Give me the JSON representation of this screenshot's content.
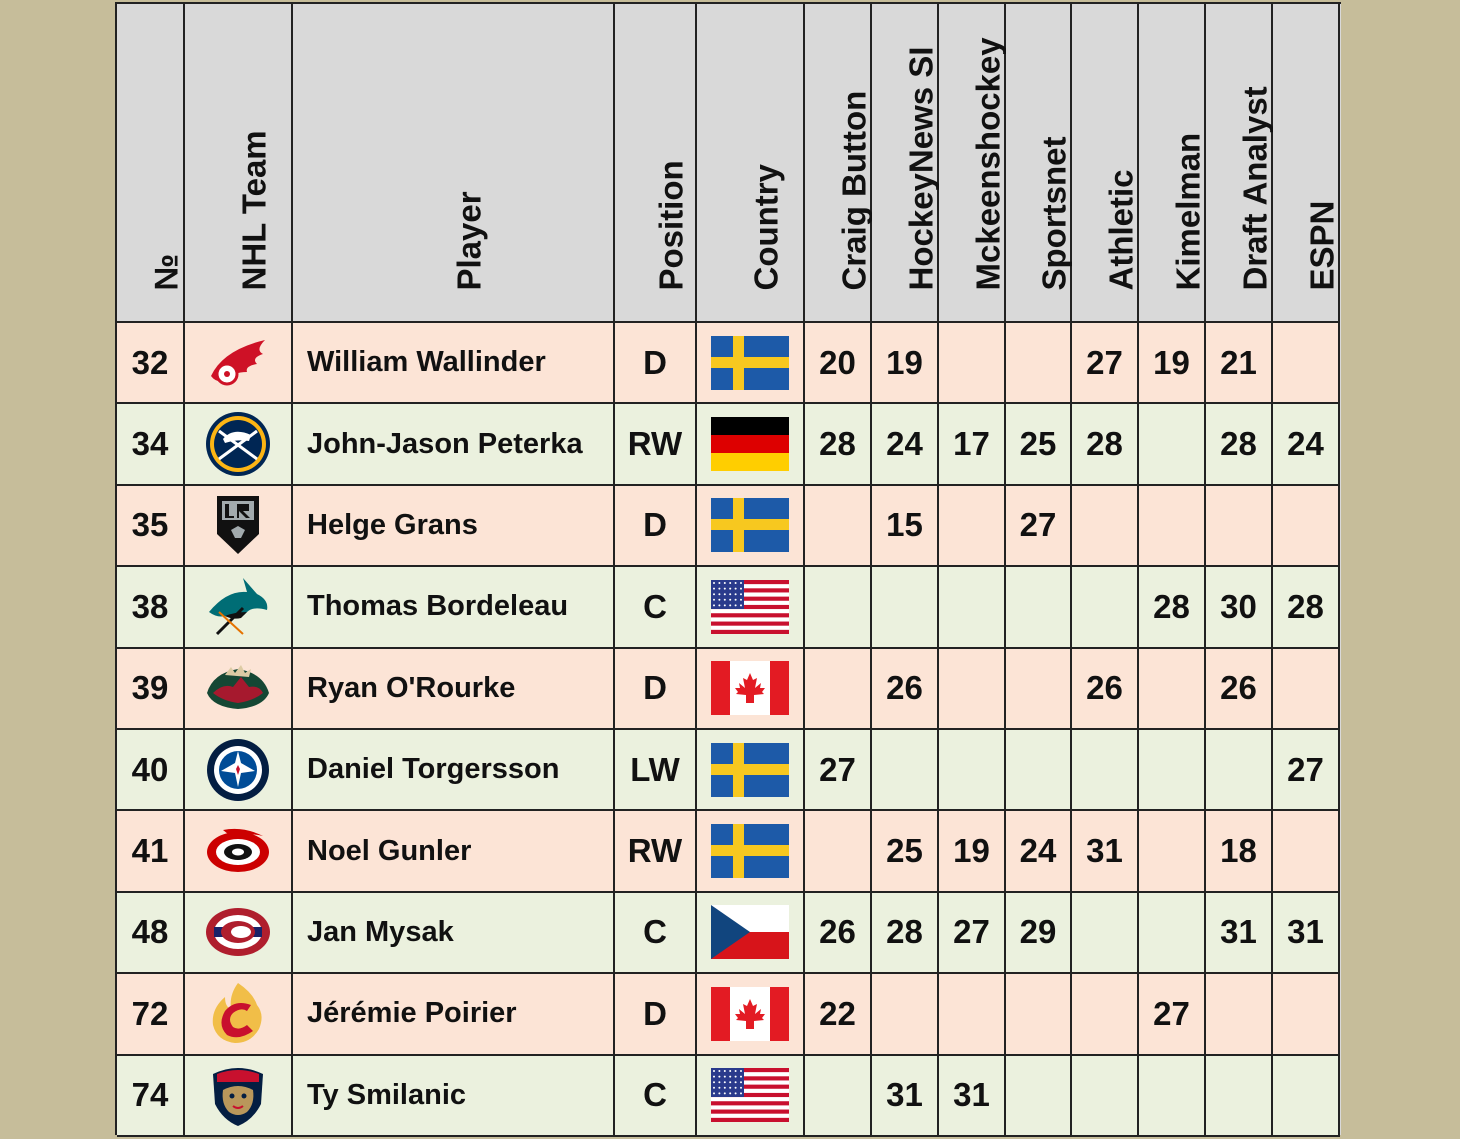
{
  "headers": [
    "№",
    "NHL Team",
    "Player",
    "Position",
    "Country",
    "Craig Button",
    "HockeyNews SI",
    "Mckeenshockey",
    "Sportsnet",
    "Athletic",
    "Kimelman",
    "Draft Analyst",
    "ESPN"
  ],
  "rows": [
    {
      "num": "32",
      "team_icon": "red-wings-logo-icon",
      "player": "William Wallinder",
      "position": "D",
      "country_icon": "sweden-flag-icon",
      "ranks": [
        "20",
        "19",
        "",
        "",
        "27",
        "19",
        "21",
        ""
      ]
    },
    {
      "num": "34",
      "team_icon": "sabres-logo-icon",
      "player": "John-Jason Peterka",
      "position": "RW",
      "country_icon": "germany-flag-icon",
      "ranks": [
        "28",
        "24",
        "17",
        "25",
        "28",
        "",
        "28",
        "24"
      ]
    },
    {
      "num": "35",
      "team_icon": "kings-logo-icon",
      "player": "Helge Grans",
      "position": "D",
      "country_icon": "sweden-flag-icon",
      "ranks": [
        "",
        "15",
        "",
        "27",
        "",
        "",
        "",
        ""
      ]
    },
    {
      "num": "38",
      "team_icon": "sharks-logo-icon",
      "player": "Thomas Bordeleau",
      "position": "C",
      "country_icon": "usa-flag-icon",
      "ranks": [
        "",
        "",
        "",
        "",
        "",
        "28",
        "30",
        "28"
      ]
    },
    {
      "num": "39",
      "team_icon": "wild-logo-icon",
      "player": "Ryan O'Rourke",
      "position": "D",
      "country_icon": "canada-flag-icon",
      "ranks": [
        "",
        "26",
        "",
        "",
        "26",
        "",
        "26",
        ""
      ]
    },
    {
      "num": "40",
      "team_icon": "jets-logo-icon",
      "player": "Daniel Torgersson",
      "position": "LW",
      "country_icon": "sweden-flag-icon",
      "ranks": [
        "27",
        "",
        "",
        "",
        "",
        "",
        "",
        "27"
      ]
    },
    {
      "num": "41",
      "team_icon": "hurricanes-logo-icon",
      "player": "Noel Gunler",
      "position": "RW",
      "country_icon": "sweden-flag-icon",
      "ranks": [
        "",
        "25",
        "19",
        "24",
        "31",
        "",
        "18",
        ""
      ]
    },
    {
      "num": "48",
      "team_icon": "canadiens-logo-icon",
      "player": "Jan Mysak",
      "position": "C",
      "country_icon": "czech-flag-icon",
      "ranks": [
        "26",
        "28",
        "27",
        "29",
        "",
        "",
        "31",
        "31"
      ]
    },
    {
      "num": "72",
      "team_icon": "flames-logo-icon",
      "player": "Jérémie Poirier",
      "position": "D",
      "country_icon": "canada-flag-icon",
      "ranks": [
        "22",
        "",
        "",
        "",
        "",
        "27",
        "",
        ""
      ]
    },
    {
      "num": "74",
      "team_icon": "panthers-logo-icon",
      "player": "Ty Smilanic",
      "position": "C",
      "country_icon": "usa-flag-icon",
      "ranks": [
        "",
        "31",
        "31",
        "",
        "",
        "",
        "",
        ""
      ]
    }
  ],
  "colors": {
    "background": "#c6bd9a",
    "header": "#d9d9d9",
    "row_peach": "#fce4d6",
    "row_green": "#ebf1de",
    "border": "#222222"
  }
}
